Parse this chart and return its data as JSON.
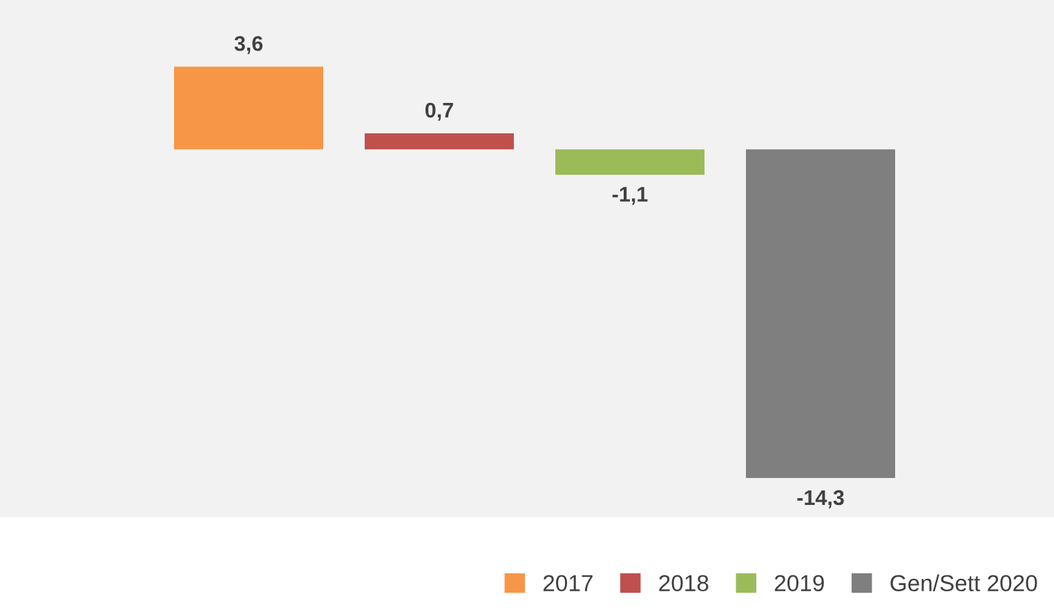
{
  "chart_data": {
    "type": "bar",
    "categories": [
      null
    ],
    "series": [
      {
        "name": "2017",
        "color": "#f79646",
        "values": [
          3.6
        ],
        "value_labels": [
          "3,6"
        ]
      },
      {
        "name": "2018",
        "color": "#c0504d",
        "values": [
          0.7
        ],
        "value_labels": [
          "0,7"
        ]
      },
      {
        "name": "2019",
        "color": "#9bbb59",
        "values": [
          -1.1
        ],
        "value_labels": [
          "-1,1"
        ]
      },
      {
        "name": "Gen/Sett 2020",
        "color": "#7f7f7f",
        "values": [
          -14.3
        ],
        "value_labels": [
          "-14,3"
        ]
      }
    ],
    "ylim": [
      -16,
      6.5
    ],
    "tick_labels": false,
    "grid": false,
    "legend": "bottom right"
  }
}
